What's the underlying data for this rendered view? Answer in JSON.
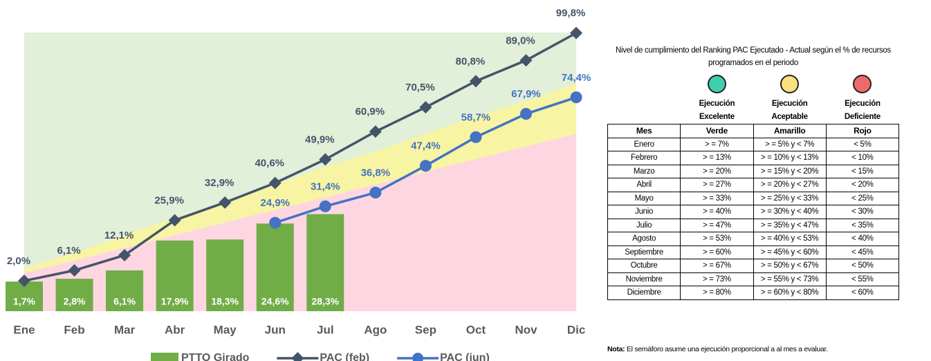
{
  "chart_data": {
    "type": "bar",
    "categories": [
      "Ene",
      "Feb",
      "Mar",
      "Abr",
      "May",
      "Jun",
      "Jul",
      "Ago",
      "Sep",
      "Oct",
      "Nov",
      "Dic"
    ],
    "ylim": [
      -10,
      100
    ],
    "areas": [
      {
        "color": "#e2efd9",
        "values": [
          100,
          100,
          100,
          100,
          100,
          100,
          100,
          100,
          100,
          100,
          100,
          100
        ]
      },
      {
        "color": "#f7f4a3",
        "values": [
          7,
          13,
          20,
          27,
          33,
          40,
          47,
          53,
          60,
          67,
          73,
          80
        ]
      },
      {
        "color": "#fdd6e1",
        "values": [
          5,
          10,
          15,
          20,
          25,
          30,
          35,
          40,
          45,
          50,
          55,
          60
        ]
      }
    ],
    "series": [
      {
        "name": "PTTO Girado",
        "type": "bar",
        "color": "#70ad47",
        "values": [
          1.7,
          2.8,
          6.1,
          17.9,
          18.3,
          24.6,
          28.3,
          null,
          null,
          null,
          null,
          null
        ],
        "value_labels": [
          "1,7%",
          "2,8%",
          "6,1%",
          "17,9%",
          "18,3%",
          "24,6%",
          "28,3%",
          null,
          null,
          null,
          null,
          null
        ]
      },
      {
        "name": "PAC (feb)",
        "type": "line",
        "marker": "diamond",
        "color": "#44546a",
        "values": [
          2.0,
          6.1,
          12.1,
          25.9,
          32.9,
          40.6,
          49.9,
          60.9,
          70.5,
          80.8,
          89.0,
          99.8
        ],
        "value_labels": [
          "2,0%",
          "6,1%",
          "12,1%",
          "25,9%",
          "32,9%",
          "40,6%",
          "49,9%",
          "60,9%",
          "70,5%",
          "80,8%",
          "89,0%",
          "99,8%"
        ]
      },
      {
        "name": "PAC (jun)",
        "type": "line",
        "marker": "circle",
        "color": "#4472c4",
        "values": [
          null,
          null,
          null,
          null,
          null,
          24.9,
          31.4,
          36.8,
          47.4,
          58.7,
          67.9,
          74.4
        ],
        "value_labels": [
          null,
          null,
          null,
          null,
          null,
          "24,9%",
          "31,4%",
          "36,8%",
          "47,4%",
          "58,7%",
          "67,9%",
          "74,4%"
        ]
      }
    ]
  },
  "panel": {
    "title": "Nivel de cumplimiento del Ranking PAC Ejecutado - Actual según el % de recursos programados en el periodo",
    "levels": [
      {
        "label": "Ejecución Excelente",
        "color": "#3dcfae"
      },
      {
        "label": "Ejecución Aceptable",
        "color": "#fbe17d"
      },
      {
        "label": "Ejecución Deficiente",
        "color": "#ee6a6a"
      }
    ],
    "header": [
      "Mes",
      "Verde",
      "Amarillo",
      "Rojo"
    ],
    "rows": [
      [
        "Enero",
        "> = 7%",
        "> = 5% y < 7%",
        "< 5%"
      ],
      [
        "Febrero",
        "> = 13%",
        "> = 10% y < 13%",
        "< 10%"
      ],
      [
        "Marzo",
        "> = 20%",
        "> = 15% y < 20%",
        "< 15%"
      ],
      [
        "Abril",
        "> = 27%",
        "> = 20% y < 27%",
        "< 20%"
      ],
      [
        "Mayo",
        "> = 33%",
        "> = 25% y < 33%",
        "< 25%"
      ],
      [
        "Junio",
        "> = 40%",
        "> = 30% y < 40%",
        "< 30%"
      ],
      [
        "Julio",
        "> = 47%",
        "> = 35% y < 47%",
        "< 35%"
      ],
      [
        "Agosto",
        "> = 53%",
        "> = 40% y < 53%",
        "< 40%"
      ],
      [
        "Septiembre",
        "> = 60%",
        "> = 45% y < 60%",
        "< 45%"
      ],
      [
        "Octubre",
        "> = 67%",
        "> = 50% y < 67%",
        "< 50%"
      ],
      [
        "Noviembre",
        "> = 73%",
        "> = 55% y < 73%",
        "< 55%"
      ],
      [
        "Diciembre",
        "> = 80%",
        "> = 60% y < 80%",
        "< 60%"
      ]
    ],
    "note_label": "Nota:",
    "note": "El semáforo asume una ejecución proporcional a al mes a evaluar."
  }
}
